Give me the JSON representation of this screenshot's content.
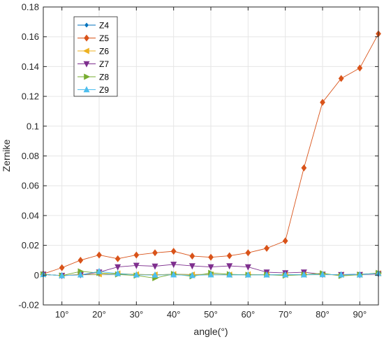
{
  "chart_data": {
    "type": "line",
    "xlabel": "angle(°)",
    "ylabel": "Zernike",
    "xlim": [
      5,
      95
    ],
    "ylim": [
      -0.02,
      0.18
    ],
    "grid": true,
    "legend_position": "top-left",
    "x_ticks": [
      10,
      20,
      30,
      40,
      50,
      60,
      70,
      80,
      90
    ],
    "x_tick_labels": [
      "10°",
      "20°",
      "30°",
      "40°",
      "50°",
      "60°",
      "70°",
      "80°",
      "90°"
    ],
    "y_ticks": [
      -0.02,
      0,
      0.02,
      0.04,
      0.06,
      0.08,
      0.1,
      0.12,
      0.14,
      0.16,
      0.18
    ],
    "y_tick_labels": [
      "-0.02",
      "0",
      "0.02",
      "0.04",
      "0.06",
      "0.08",
      "0.1",
      "0.12",
      "0.14",
      "0.16",
      "0.18"
    ],
    "x": [
      5,
      10,
      15,
      20,
      25,
      30,
      35,
      40,
      45,
      50,
      55,
      60,
      65,
      70,
      75,
      80,
      85,
      90,
      95
    ],
    "series": [
      {
        "name": "Z4",
        "color": "#0072bd",
        "marker": "diamond-small",
        "values": [
          0.0005,
          -0.0003,
          0.0003,
          0.0005,
          0.0007,
          0.0005,
          0.0003,
          0.0006,
          0.0004,
          0.0005,
          0.0003,
          0.0004,
          0.0003,
          0.0002,
          0.0004,
          0.0004,
          0.0004,
          0.0006,
          0.0012
        ]
      },
      {
        "name": "Z5",
        "color": "#d95319",
        "marker": "diamond",
        "values": [
          0.0008,
          0.005,
          0.01,
          0.0135,
          0.011,
          0.0135,
          0.015,
          0.016,
          0.0128,
          0.012,
          0.013,
          0.015,
          0.018,
          0.023,
          0.072,
          0.116,
          0.132,
          0.139,
          0.162
        ]
      },
      {
        "name": "Z6",
        "color": "#edb120",
        "marker": "triangle-left",
        "values": [
          0.0005,
          -0.0003,
          0.0006,
          0.0006,
          0.0011,
          0.0005,
          0.0003,
          0.0006,
          0.0004,
          0.0005,
          0.0003,
          0.0005,
          0.0003,
          0.0002,
          0.0003,
          0.0004,
          0.0003,
          0.0003,
          0.0012
        ]
      },
      {
        "name": "Z7",
        "color": "#7e2f8e",
        "marker": "triangle-down",
        "values": [
          0.0005,
          -0.0003,
          0.0002,
          0.002,
          0.0055,
          0.0065,
          0.006,
          0.0072,
          0.0062,
          0.0055,
          0.0062,
          0.0055,
          0.002,
          0.0015,
          0.002,
          0.0005,
          0.0003,
          0.0003,
          0.0008
        ]
      },
      {
        "name": "Z8",
        "color": "#77ac30",
        "marker": "triangle-right",
        "values": [
          0.0005,
          -0.0003,
          0.0025,
          0.0015,
          0.0005,
          -0.0003,
          -0.002,
          0.0008,
          -0.0008,
          0.0015,
          0.0006,
          0.0002,
          0.0003,
          -0.0003,
          0.0003,
          0.0012,
          -0.0005,
          0.0003,
          0.0015
        ]
      },
      {
        "name": "Z9",
        "color": "#4dbeee",
        "marker": "triangle-up",
        "values": [
          0.0005,
          -0.0003,
          0.0002,
          0.0025,
          0.0011,
          0.0002,
          0.0001,
          0.0003,
          -0.0002,
          0.0003,
          0.0002,
          0.0002,
          0.0002,
          0.0003,
          0.0003,
          0.0004,
          0.0003,
          0.0003,
          0.0012
        ]
      }
    ]
  }
}
